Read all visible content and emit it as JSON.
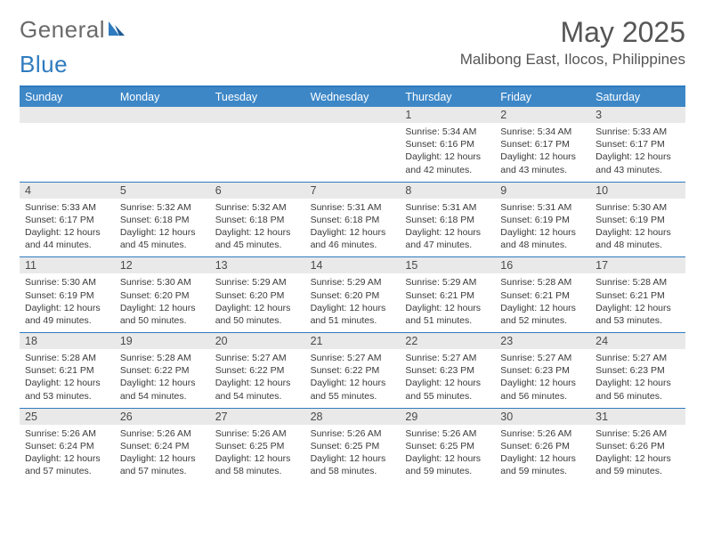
{
  "brand": {
    "word1": "General",
    "word2": "Blue"
  },
  "title": "May 2025",
  "location": "Malibong East, Ilocos, Philippines",
  "colors": {
    "header_bar": "#3d87c7",
    "border": "#2f7bbf",
    "daynum_bg": "#e9e9e9",
    "text": "#333333"
  },
  "dow": [
    "Sunday",
    "Monday",
    "Tuesday",
    "Wednesday",
    "Thursday",
    "Friday",
    "Saturday"
  ],
  "weeks": [
    [
      {
        "n": "",
        "sr": "",
        "ss": "",
        "dl": ""
      },
      {
        "n": "",
        "sr": "",
        "ss": "",
        "dl": ""
      },
      {
        "n": "",
        "sr": "",
        "ss": "",
        "dl": ""
      },
      {
        "n": "",
        "sr": "",
        "ss": "",
        "dl": ""
      },
      {
        "n": "1",
        "sr": "Sunrise: 5:34 AM",
        "ss": "Sunset: 6:16 PM",
        "dl": "Daylight: 12 hours and 42 minutes."
      },
      {
        "n": "2",
        "sr": "Sunrise: 5:34 AM",
        "ss": "Sunset: 6:17 PM",
        "dl": "Daylight: 12 hours and 43 minutes."
      },
      {
        "n": "3",
        "sr": "Sunrise: 5:33 AM",
        "ss": "Sunset: 6:17 PM",
        "dl": "Daylight: 12 hours and 43 minutes."
      }
    ],
    [
      {
        "n": "4",
        "sr": "Sunrise: 5:33 AM",
        "ss": "Sunset: 6:17 PM",
        "dl": "Daylight: 12 hours and 44 minutes."
      },
      {
        "n": "5",
        "sr": "Sunrise: 5:32 AM",
        "ss": "Sunset: 6:18 PM",
        "dl": "Daylight: 12 hours and 45 minutes."
      },
      {
        "n": "6",
        "sr": "Sunrise: 5:32 AM",
        "ss": "Sunset: 6:18 PM",
        "dl": "Daylight: 12 hours and 45 minutes."
      },
      {
        "n": "7",
        "sr": "Sunrise: 5:31 AM",
        "ss": "Sunset: 6:18 PM",
        "dl": "Daylight: 12 hours and 46 minutes."
      },
      {
        "n": "8",
        "sr": "Sunrise: 5:31 AM",
        "ss": "Sunset: 6:18 PM",
        "dl": "Daylight: 12 hours and 47 minutes."
      },
      {
        "n": "9",
        "sr": "Sunrise: 5:31 AM",
        "ss": "Sunset: 6:19 PM",
        "dl": "Daylight: 12 hours and 48 minutes."
      },
      {
        "n": "10",
        "sr": "Sunrise: 5:30 AM",
        "ss": "Sunset: 6:19 PM",
        "dl": "Daylight: 12 hours and 48 minutes."
      }
    ],
    [
      {
        "n": "11",
        "sr": "Sunrise: 5:30 AM",
        "ss": "Sunset: 6:19 PM",
        "dl": "Daylight: 12 hours and 49 minutes."
      },
      {
        "n": "12",
        "sr": "Sunrise: 5:30 AM",
        "ss": "Sunset: 6:20 PM",
        "dl": "Daylight: 12 hours and 50 minutes."
      },
      {
        "n": "13",
        "sr": "Sunrise: 5:29 AM",
        "ss": "Sunset: 6:20 PM",
        "dl": "Daylight: 12 hours and 50 minutes."
      },
      {
        "n": "14",
        "sr": "Sunrise: 5:29 AM",
        "ss": "Sunset: 6:20 PM",
        "dl": "Daylight: 12 hours and 51 minutes."
      },
      {
        "n": "15",
        "sr": "Sunrise: 5:29 AM",
        "ss": "Sunset: 6:21 PM",
        "dl": "Daylight: 12 hours and 51 minutes."
      },
      {
        "n": "16",
        "sr": "Sunrise: 5:28 AM",
        "ss": "Sunset: 6:21 PM",
        "dl": "Daylight: 12 hours and 52 minutes."
      },
      {
        "n": "17",
        "sr": "Sunrise: 5:28 AM",
        "ss": "Sunset: 6:21 PM",
        "dl": "Daylight: 12 hours and 53 minutes."
      }
    ],
    [
      {
        "n": "18",
        "sr": "Sunrise: 5:28 AM",
        "ss": "Sunset: 6:21 PM",
        "dl": "Daylight: 12 hours and 53 minutes."
      },
      {
        "n": "19",
        "sr": "Sunrise: 5:28 AM",
        "ss": "Sunset: 6:22 PM",
        "dl": "Daylight: 12 hours and 54 minutes."
      },
      {
        "n": "20",
        "sr": "Sunrise: 5:27 AM",
        "ss": "Sunset: 6:22 PM",
        "dl": "Daylight: 12 hours and 54 minutes."
      },
      {
        "n": "21",
        "sr": "Sunrise: 5:27 AM",
        "ss": "Sunset: 6:22 PM",
        "dl": "Daylight: 12 hours and 55 minutes."
      },
      {
        "n": "22",
        "sr": "Sunrise: 5:27 AM",
        "ss": "Sunset: 6:23 PM",
        "dl": "Daylight: 12 hours and 55 minutes."
      },
      {
        "n": "23",
        "sr": "Sunrise: 5:27 AM",
        "ss": "Sunset: 6:23 PM",
        "dl": "Daylight: 12 hours and 56 minutes."
      },
      {
        "n": "24",
        "sr": "Sunrise: 5:27 AM",
        "ss": "Sunset: 6:23 PM",
        "dl": "Daylight: 12 hours and 56 minutes."
      }
    ],
    [
      {
        "n": "25",
        "sr": "Sunrise: 5:26 AM",
        "ss": "Sunset: 6:24 PM",
        "dl": "Daylight: 12 hours and 57 minutes."
      },
      {
        "n": "26",
        "sr": "Sunrise: 5:26 AM",
        "ss": "Sunset: 6:24 PM",
        "dl": "Daylight: 12 hours and 57 minutes."
      },
      {
        "n": "27",
        "sr": "Sunrise: 5:26 AM",
        "ss": "Sunset: 6:25 PM",
        "dl": "Daylight: 12 hours and 58 minutes."
      },
      {
        "n": "28",
        "sr": "Sunrise: 5:26 AM",
        "ss": "Sunset: 6:25 PM",
        "dl": "Daylight: 12 hours and 58 minutes."
      },
      {
        "n": "29",
        "sr": "Sunrise: 5:26 AM",
        "ss": "Sunset: 6:25 PM",
        "dl": "Daylight: 12 hours and 59 minutes."
      },
      {
        "n": "30",
        "sr": "Sunrise: 5:26 AM",
        "ss": "Sunset: 6:26 PM",
        "dl": "Daylight: 12 hours and 59 minutes."
      },
      {
        "n": "31",
        "sr": "Sunrise: 5:26 AM",
        "ss": "Sunset: 6:26 PM",
        "dl": "Daylight: 12 hours and 59 minutes."
      }
    ]
  ]
}
